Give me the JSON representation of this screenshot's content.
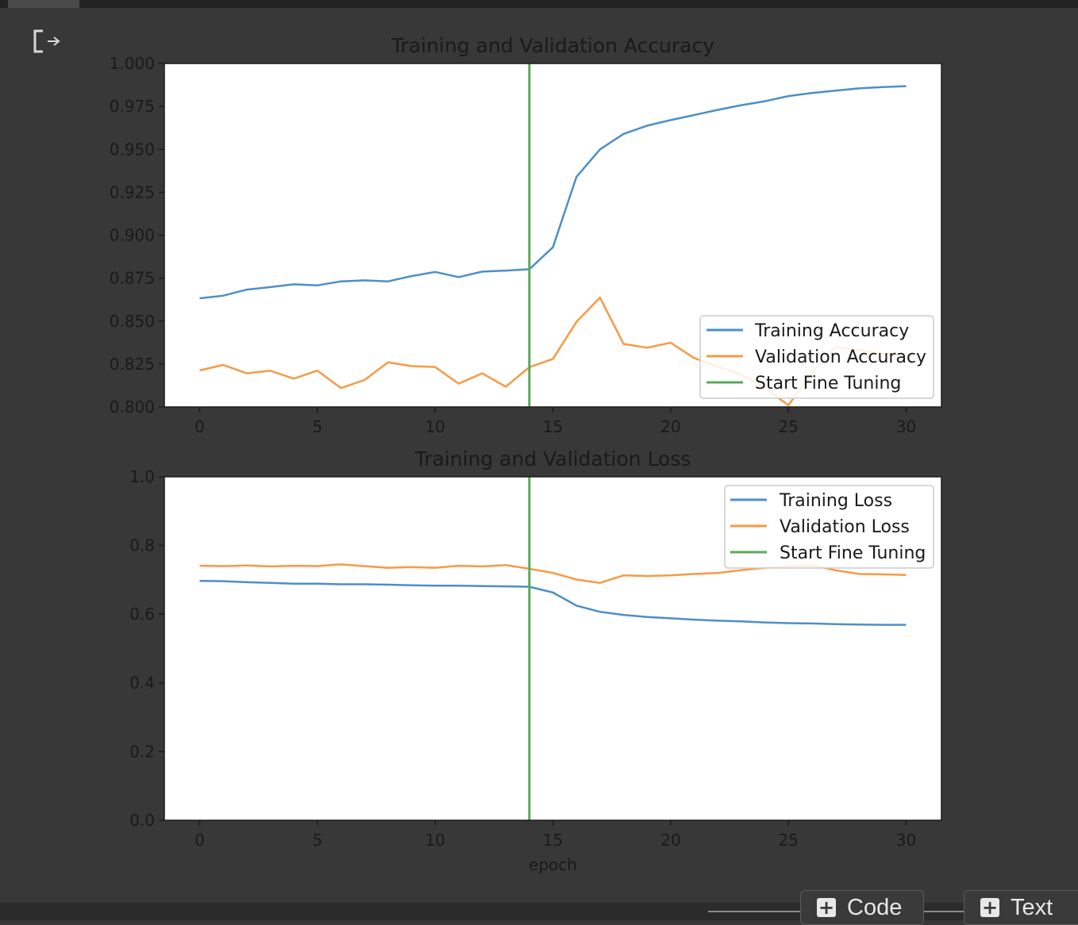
{
  "toolbar": {
    "add_code_label": "Code",
    "add_text_label": "Text"
  },
  "icons": {
    "output": "output-redirect-icon",
    "plus": "plus-icon"
  },
  "colors": {
    "training": "#4d8fc7",
    "validation": "#f79a45",
    "fine_tune": "#5aa85a"
  },
  "chart_data": [
    {
      "type": "line",
      "title": "Training and Validation Accuracy",
      "xlabel": "",
      "ylabel": "",
      "xlim": [
        -1.5,
        31.5
      ],
      "ylim": [
        0.8,
        1.0
      ],
      "xticks": [
        0,
        5,
        10,
        15,
        20,
        25,
        30
      ],
      "yticks": [
        0.8,
        0.825,
        0.85,
        0.875,
        0.9,
        0.925,
        0.95,
        0.975,
        1.0
      ],
      "ytick_labels": [
        "0.800",
        "0.825",
        "0.850",
        "0.875",
        "0.900",
        "0.925",
        "0.950",
        "0.975",
        "1.000"
      ],
      "legend_position": "lower-right",
      "vline": {
        "x": 14,
        "label": "Start Fine Tuning"
      },
      "series": [
        {
          "name": "Training Accuracy",
          "x": [
            0,
            1,
            2,
            3,
            4,
            5,
            6,
            7,
            8,
            9,
            10,
            11,
            12,
            13,
            14,
            15,
            16,
            17,
            18,
            19,
            20,
            21,
            22,
            23,
            24,
            25,
            26,
            27,
            28,
            29,
            30
          ],
          "values": [
            0.8633,
            0.8648,
            0.8683,
            0.8698,
            0.8714,
            0.8708,
            0.8731,
            0.8737,
            0.8731,
            0.8762,
            0.8786,
            0.8756,
            0.8788,
            0.8794,
            0.8802,
            0.893,
            0.934,
            0.95,
            0.959,
            0.9638,
            0.967,
            0.97,
            0.973,
            0.9757,
            0.978,
            0.981,
            0.9828,
            0.9842,
            0.9855,
            0.9863,
            0.9868
          ]
        },
        {
          "name": "Validation Accuracy",
          "x": [
            0,
            1,
            2,
            3,
            4,
            5,
            6,
            7,
            8,
            9,
            10,
            11,
            12,
            13,
            14,
            15,
            16,
            17,
            18,
            19,
            20,
            21,
            22,
            23,
            24,
            25,
            26,
            27,
            28,
            29,
            30
          ],
          "values": [
            0.8213,
            0.8245,
            0.8196,
            0.8211,
            0.8165,
            0.8212,
            0.811,
            0.8157,
            0.826,
            0.8238,
            0.8233,
            0.8136,
            0.8196,
            0.8118,
            0.8232,
            0.828,
            0.8495,
            0.8637,
            0.8367,
            0.8345,
            0.8374,
            0.8285,
            0.8235,
            0.819,
            0.811,
            0.801,
            0.82,
            0.835,
            0.833,
            0.831,
            0.83
          ]
        }
      ]
    },
    {
      "type": "line",
      "title": "Training and Validation Loss",
      "xlabel": "epoch",
      "ylabel": "",
      "xlim": [
        -1.5,
        31.5
      ],
      "ylim": [
        0.0,
        1.0
      ],
      "xticks": [
        0,
        5,
        10,
        15,
        20,
        25,
        30
      ],
      "yticks": [
        0.0,
        0.2,
        0.4,
        0.6,
        0.8,
        1.0
      ],
      "ytick_labels": [
        "0.0",
        "0.2",
        "0.4",
        "0.6",
        "0.8",
        "1.0"
      ],
      "legend_position": "upper-right",
      "vline": {
        "x": 14,
        "label": "Start Fine Tuning"
      },
      "series": [
        {
          "name": "Training Loss",
          "x": [
            0,
            1,
            2,
            3,
            4,
            5,
            6,
            7,
            8,
            9,
            10,
            11,
            12,
            13,
            14,
            15,
            16,
            17,
            18,
            19,
            20,
            21,
            22,
            23,
            24,
            25,
            26,
            27,
            28,
            29,
            30
          ],
          "values": [
            0.697,
            0.696,
            0.693,
            0.691,
            0.689,
            0.689,
            0.687,
            0.687,
            0.686,
            0.684,
            0.683,
            0.683,
            0.682,
            0.681,
            0.68,
            0.663,
            0.625,
            0.607,
            0.598,
            0.592,
            0.588,
            0.584,
            0.581,
            0.579,
            0.576,
            0.574,
            0.573,
            0.571,
            0.57,
            0.569,
            0.569
          ]
        },
        {
          "name": "Validation Loss",
          "x": [
            0,
            1,
            2,
            3,
            4,
            5,
            6,
            7,
            8,
            9,
            10,
            11,
            12,
            13,
            14,
            15,
            16,
            17,
            18,
            19,
            20,
            21,
            22,
            23,
            24,
            25,
            26,
            27,
            28,
            29,
            30
          ],
          "values": [
            0.741,
            0.74,
            0.742,
            0.739,
            0.741,
            0.74,
            0.745,
            0.74,
            0.735,
            0.737,
            0.735,
            0.741,
            0.739,
            0.743,
            0.732,
            0.72,
            0.701,
            0.691,
            0.713,
            0.711,
            0.713,
            0.717,
            0.72,
            0.728,
            0.735,
            0.74,
            0.742,
            0.728,
            0.717,
            0.716,
            0.714
          ]
        }
      ]
    }
  ]
}
